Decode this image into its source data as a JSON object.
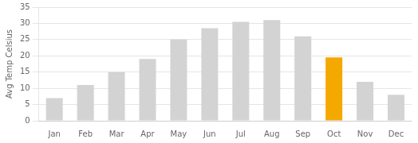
{
  "chart_data": {
    "type": "bar",
    "categories": [
      "Jan",
      "Feb",
      "Mar",
      "Apr",
      "May",
      "Jun",
      "Jul",
      "Aug",
      "Sep",
      "Oct",
      "Nov",
      "Dec"
    ],
    "values": [
      7,
      11,
      15,
      19,
      25,
      28.5,
      30.5,
      31,
      26,
      19.5,
      12,
      8
    ],
    "colors": [
      "#d3d3d3",
      "#d3d3d3",
      "#d3d3d3",
      "#d3d3d3",
      "#d3d3d3",
      "#d3d3d3",
      "#d3d3d3",
      "#d3d3d3",
      "#d3d3d3",
      "#f5a800",
      "#d3d3d3",
      "#d3d3d3"
    ],
    "ylabel": "Avg Temp Celsius",
    "ylim": [
      0,
      35
    ],
    "yticks": [
      0,
      5,
      10,
      15,
      20,
      25,
      30,
      35
    ],
    "grid": true
  }
}
